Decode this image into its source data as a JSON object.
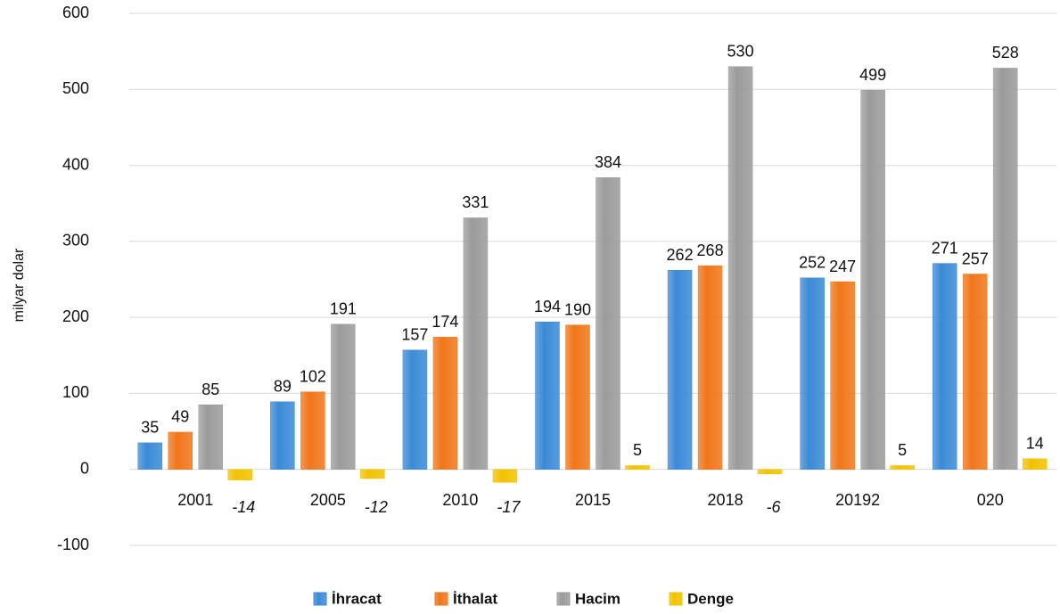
{
  "chart_data": {
    "type": "bar",
    "y_label": "milyar dolar",
    "categories": [
      "2001",
      "2005",
      "2010",
      "2015",
      "2018",
      "20192",
      "020"
    ],
    "series": [
      {
        "name": "İhracat",
        "color": "#3b8ad6",
        "values": [
          35,
          89,
          157,
          194,
          262,
          252,
          271
        ]
      },
      {
        "name": "İthalat",
        "color": "#f0761a",
        "values": [
          49,
          102,
          174,
          190,
          268,
          247,
          257
        ]
      },
      {
        "name": "Hacim",
        "color": "#9b9b9b",
        "values": [
          85,
          191,
          331,
          384,
          530,
          499,
          528
        ]
      },
      {
        "name": "Denge",
        "color": "#f2c200",
        "values": [
          -14,
          -12,
          -17,
          5,
          -6,
          5,
          14
        ]
      }
    ],
    "ylim": [
      -100,
      600
    ],
    "yticks": [
      -100,
      0,
      100,
      200,
      300,
      400,
      500,
      600
    ],
    "grid": true,
    "legend": "bottom"
  }
}
